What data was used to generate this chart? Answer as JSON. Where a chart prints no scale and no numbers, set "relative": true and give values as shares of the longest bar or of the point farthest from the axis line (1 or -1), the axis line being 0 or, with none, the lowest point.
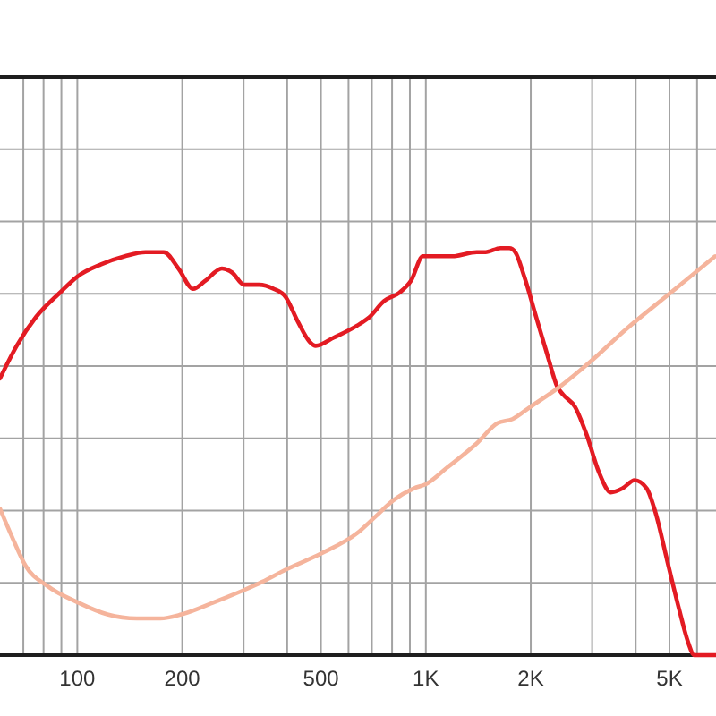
{
  "chart_data": {
    "type": "line",
    "log": "x",
    "relative": true,
    "grid": true,
    "xlim": [
      60,
      6800
    ],
    "xticks": [
      {
        "value": 70,
        "label": null
      },
      {
        "value": 80,
        "label": null
      },
      {
        "value": 90,
        "label": null
      },
      100,
      200,
      {
        "value": 300,
        "label": null
      },
      {
        "value": 400,
        "label": null
      },
      500,
      {
        "value": 600,
        "label": null
      },
      {
        "value": 700,
        "label": null
      },
      {
        "value": 800,
        "label": null
      },
      {
        "value": 900,
        "label": null
      },
      {
        "value": 1000,
        "label": "1K"
      },
      {
        "value": 2000,
        "label": "2K"
      },
      {
        "value": 3000,
        "label": null
      },
      {
        "value": 4000,
        "label": null
      },
      {
        "value": 5000,
        "label": "5K"
      },
      {
        "value": 6000,
        "label": null
      }
    ],
    "series": [
      {
        "color": "#e31b23",
        "x": [
          60,
          67,
          76,
          89,
          100,
          117,
          137,
          157,
          177,
          195,
          215,
          233,
          260,
          278,
          301,
          332,
          366,
          396,
          429,
          464,
          483,
          544,
          636,
          688,
          759,
          838,
          907,
          981,
          1041,
          1126,
          1194,
          1399,
          1484,
          1637,
          1736,
          1806,
          1916,
          2074,
          2245,
          2381,
          2476,
          2679,
          2897,
          3136,
          3395,
          3670,
          3972,
          4300,
          4561,
          4932,
          5339,
          5664,
          5888,
          6760
        ],
        "values": [
          0.68,
          0.76,
          0.83,
          0.89,
          0.93,
          0.96,
          0.98,
          0.99,
          0.99,
          0.95,
          0.9,
          0.92,
          0.95,
          0.94,
          0.91,
          0.91,
          0.9,
          0.88,
          0.82,
          0.77,
          0.76,
          0.78,
          0.81,
          0.83,
          0.87,
          0.89,
          0.92,
          0.98,
          0.98,
          0.98,
          0.98,
          0.99,
          0.99,
          1.0,
          1.0,
          0.99,
          0.93,
          0.83,
          0.73,
          0.66,
          0.64,
          0.61,
          0.54,
          0.45,
          0.4,
          0.41,
          0.43,
          0.41,
          0.35,
          0.23,
          0.11,
          0.03,
          0,
          0
        ]
      },
      {
        "color": "#f5b49c",
        "x": [
          60,
          65,
          71,
          82,
          100,
          122,
          148,
          173,
          199,
          247,
          301,
          339,
          396,
          502,
          636,
          716,
          806,
          925,
          1000,
          1148,
          1399,
          1605,
          1772,
          1994,
          2427,
          2956,
          3745,
          5031,
          6760
        ],
        "values": [
          0.36,
          0.29,
          0.22,
          0.17,
          0.13,
          0.1,
          0.09,
          0.09,
          0.1,
          0.13,
          0.16,
          0.18,
          0.21,
          0.25,
          0.3,
          0.34,
          0.38,
          0.41,
          0.42,
          0.46,
          0.52,
          0.57,
          0.58,
          0.61,
          0.66,
          0.72,
          0.8,
          0.89,
          0.98
        ]
      }
    ]
  }
}
